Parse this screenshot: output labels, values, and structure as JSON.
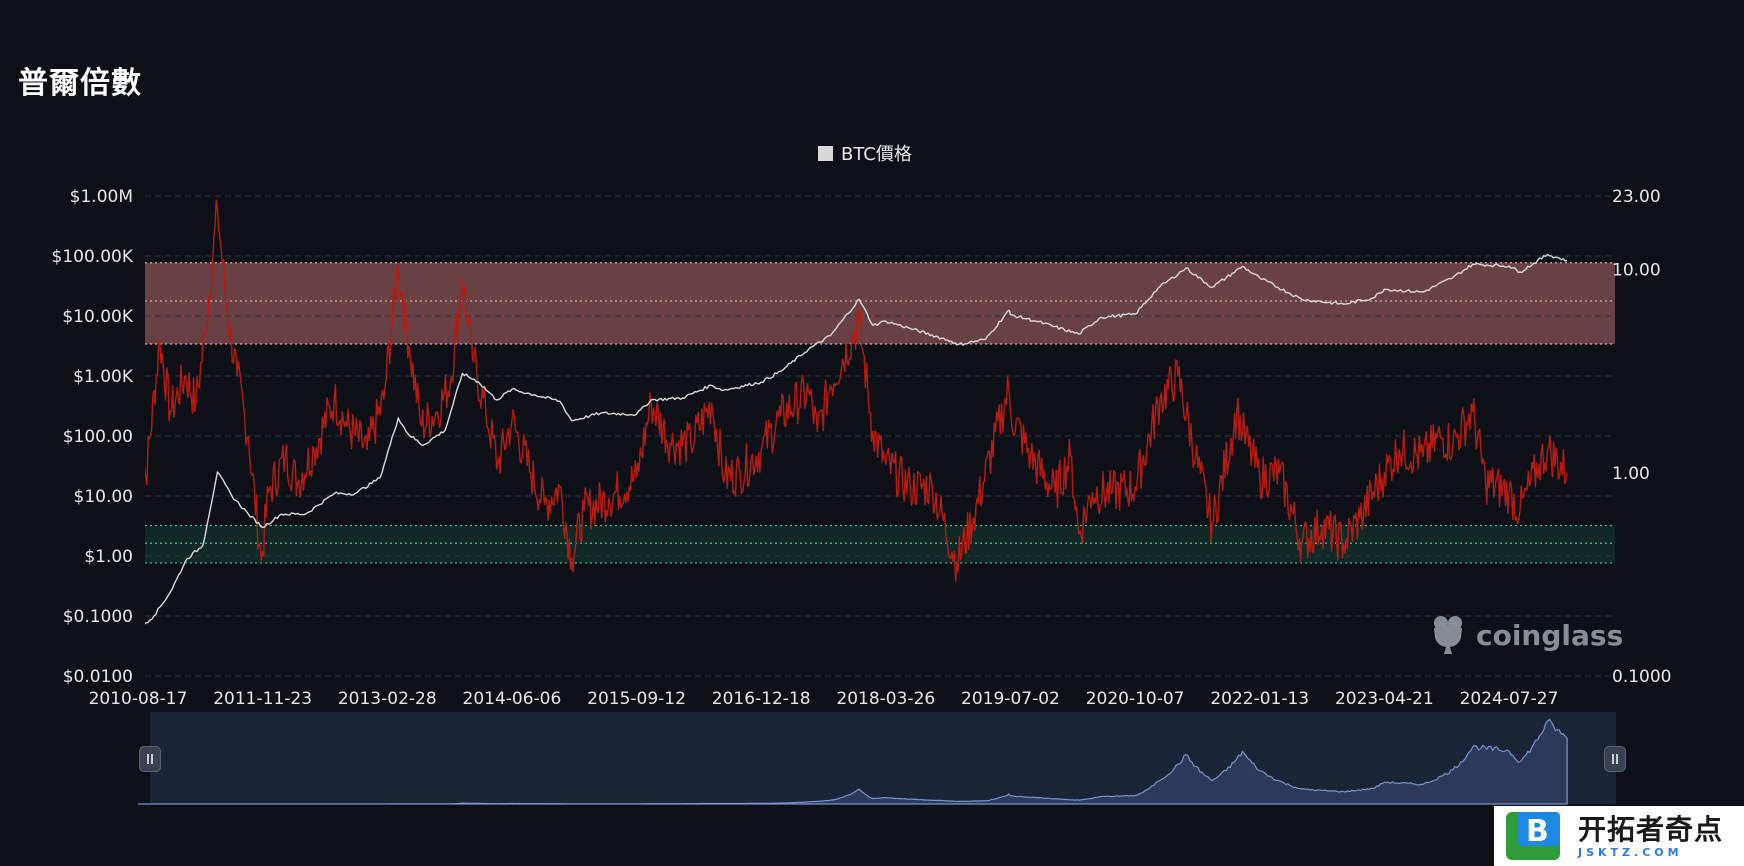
{
  "page": {
    "title": "普爾倍數"
  },
  "legend": {
    "label": "BTC價格",
    "color": "#d9d9d9"
  },
  "watermark": {
    "text": "coinglass",
    "icon": "coinglass-frog-icon"
  },
  "badge": {
    "title": "开拓者奇点",
    "subtitle": "JSKTZ.COM",
    "icon": "b-letter-logo-icon"
  },
  "colors": {
    "background": "#0d1117",
    "price_line": "#d9d9d9",
    "mayer_line": "#b51c12",
    "overbought_band": "#7a4a4c",
    "oversold_band": "#12322c",
    "band_line_red": "#e6b8b8",
    "band_line_green": "#5fc9a9",
    "grid": "#2a3242",
    "navigator_fill": "#2b3a5a",
    "navigator_line": "#7b94c9"
  },
  "chart_data": {
    "type": "line",
    "title": "普爾倍數",
    "x_ticks": [
      "2010-08-17",
      "2011-11-23",
      "2013-02-28",
      "2014-06-06",
      "2015-09-12",
      "2016-12-18",
      "2018-03-26",
      "2019-07-02",
      "2020-10-07",
      "2022-01-13",
      "2023-04-21",
      "2024-07-27"
    ],
    "x_range": [
      "2010-08-17",
      "2025-02-28"
    ],
    "y_left": {
      "scale": "log",
      "range": [
        0.01,
        1000000
      ],
      "ticks": [
        "$0.0100",
        "$0.1000",
        "$1.00",
        "$10.00",
        "$100.00",
        "$1.00K",
        "$10.00K",
        "$100.00K",
        "$1.00M"
      ]
    },
    "y_right": {
      "scale": "log",
      "range": [
        0.1,
        23
      ],
      "ticks": [
        "0.1000",
        "1.00",
        "10.00",
        "23.00"
      ],
      "tick_values": [
        0.1,
        1,
        10,
        23
      ]
    },
    "bands": [
      {
        "name": "overbought",
        "axis": "right",
        "from": 4.3,
        "to": 10.8,
        "line": 7.0,
        "color": "#7a4a4c"
      },
      {
        "name": "oversold",
        "axis": "right",
        "from": 0.36,
        "to": 0.55,
        "line": 0.45,
        "color": "#12322c"
      }
    ],
    "series": [
      {
        "name": "BTC價格",
        "axis": "left",
        "color": "#d9d9d9",
        "points": [
          [
            "2010-08-17",
            0.06
          ],
          [
            "2010-10-15",
            0.1
          ],
          [
            "2010-12-15",
            0.25
          ],
          [
            "2011-02-15",
            0.9
          ],
          [
            "2011-04-15",
            1.5
          ],
          [
            "2011-06-08",
            25
          ],
          [
            "2011-08-01",
            10
          ],
          [
            "2011-10-01",
            5
          ],
          [
            "2011-11-23",
            3
          ],
          [
            "2012-02-01",
            5
          ],
          [
            "2012-05-01",
            5
          ],
          [
            "2012-08-15",
            11
          ],
          [
            "2012-11-01",
            11
          ],
          [
            "2013-02-01",
            20
          ],
          [
            "2013-04-10",
            200
          ],
          [
            "2013-05-15",
            110
          ],
          [
            "2013-07-10",
            70
          ],
          [
            "2013-10-01",
            125
          ],
          [
            "2013-12-04",
            1100
          ],
          [
            "2014-02-01",
            800
          ],
          [
            "2014-04-10",
            400
          ],
          [
            "2014-06-06",
            600
          ],
          [
            "2014-09-01",
            480
          ],
          [
            "2014-12-01",
            380
          ],
          [
            "2015-01-14",
            180
          ],
          [
            "2015-05-01",
            240
          ],
          [
            "2015-09-12",
            230
          ],
          [
            "2015-11-05",
            400
          ],
          [
            "2016-03-01",
            430
          ],
          [
            "2016-06-15",
            700
          ],
          [
            "2016-08-01",
            580
          ],
          [
            "2016-12-18",
            790
          ],
          [
            "2017-03-01",
            1200
          ],
          [
            "2017-06-12",
            2800
          ],
          [
            "2017-09-01",
            4700
          ],
          [
            "2017-12-17",
            19000
          ],
          [
            "2018-02-06",
            7000
          ],
          [
            "2018-03-26",
            8200
          ],
          [
            "2018-06-25",
            6200
          ],
          [
            "2018-11-25",
            3800
          ],
          [
            "2018-12-15",
            3300
          ],
          [
            "2019-04-01",
            4100
          ],
          [
            "2019-06-26",
            12500
          ],
          [
            "2019-07-02",
            10500
          ],
          [
            "2019-10-01",
            8300
          ],
          [
            "2020-03-12",
            5000
          ],
          [
            "2020-06-01",
            9500
          ],
          [
            "2020-10-07",
            10700
          ],
          [
            "2020-12-31",
            29000
          ],
          [
            "2021-04-14",
            63000
          ],
          [
            "2021-07-20",
            30000
          ],
          [
            "2021-11-10",
            67000
          ],
          [
            "2022-01-13",
            43000
          ],
          [
            "2022-06-18",
            19000
          ],
          [
            "2022-11-21",
            15700
          ],
          [
            "2023-03-10",
            20000
          ],
          [
            "2023-04-21",
            28000
          ],
          [
            "2023-09-11",
            25000
          ],
          [
            "2024-01-01",
            44000
          ],
          [
            "2024-03-14",
            73000
          ],
          [
            "2024-07-27",
            68000
          ],
          [
            "2024-09-06",
            54000
          ],
          [
            "2024-12-17",
            106000
          ],
          [
            "2025-02-28",
            84000
          ]
        ]
      },
      {
        "name": "普爾倍數",
        "axis": "right",
        "color": "#b51c12",
        "points": [
          [
            "2010-08-17",
            1.9
          ],
          [
            "2010-09-15",
            0.95
          ],
          [
            "2010-11-06",
            4.5
          ],
          [
            "2010-12-15",
            2.0
          ],
          [
            "2011-02-10",
            3.0
          ],
          [
            "2011-03-20",
            2.2
          ],
          [
            "2011-04-25",
            5.0
          ],
          [
            "2011-06-08",
            20
          ],
          [
            "2011-07-15",
            6.0
          ],
          [
            "2011-08-20",
            3.0
          ],
          [
            "2011-10-01",
            1.5
          ],
          [
            "2011-11-18",
            0.37
          ],
          [
            "2011-12-15",
            0.8
          ],
          [
            "2012-02-15",
            1.2
          ],
          [
            "2012-04-01",
            0.9
          ],
          [
            "2012-06-01",
            1.3
          ],
          [
            "2012-08-15",
            2.3
          ],
          [
            "2012-10-01",
            1.7
          ],
          [
            "2012-12-15",
            1.3
          ],
          [
            "2013-02-15",
            2.3
          ],
          [
            "2013-04-10",
            10.5
          ],
          [
            "2013-05-20",
            4.2
          ],
          [
            "2013-07-05",
            1.7
          ],
          [
            "2013-09-01",
            2.0
          ],
          [
            "2013-10-20",
            2.8
          ],
          [
            "2013-12-04",
            9.0
          ],
          [
            "2014-01-15",
            3.5
          ],
          [
            "2014-03-01",
            2.0
          ],
          [
            "2014-04-15",
            1.1
          ],
          [
            "2014-06-06",
            1.8
          ],
          [
            "2014-08-15",
            1.0
          ],
          [
            "2014-10-05",
            0.7
          ],
          [
            "2014-12-01",
            0.85
          ],
          [
            "2015-01-14",
            0.38
          ],
          [
            "2015-03-01",
            0.65
          ],
          [
            "2015-06-01",
            0.75
          ],
          [
            "2015-09-12",
            0.95
          ],
          [
            "2015-11-05",
            2.2
          ],
          [
            "2016-01-15",
            1.4
          ],
          [
            "2016-04-01",
            1.4
          ],
          [
            "2016-06-17",
            2.2
          ],
          [
            "2016-08-05",
            0.95
          ],
          [
            "2016-10-01",
            1.0
          ],
          [
            "2016-12-18",
            1.3
          ],
          [
            "2017-03-01",
            1.9
          ],
          [
            "2017-06-12",
            2.5
          ],
          [
            "2017-07-15",
            1.6
          ],
          [
            "2017-09-01",
            2.7
          ],
          [
            "2017-12-17",
            5.5
          ],
          [
            "2018-02-06",
            1.6
          ],
          [
            "2018-03-26",
            1.1
          ],
          [
            "2018-06-25",
            0.85
          ],
          [
            "2018-09-15",
            0.85
          ],
          [
            "2018-12-15",
            0.36
          ],
          [
            "2019-02-15",
            0.6
          ],
          [
            "2019-06-26",
            2.6
          ],
          [
            "2019-07-02",
            2.0
          ],
          [
            "2019-09-15",
            1.2
          ],
          [
            "2019-12-15",
            0.8
          ],
          [
            "2020-02-10",
            1.2
          ],
          [
            "2020-03-12",
            0.5
          ],
          [
            "2020-05-01",
            0.8
          ],
          [
            "2020-07-15",
            0.8
          ],
          [
            "2020-10-07",
            0.85
          ],
          [
            "2021-01-08",
            2.3
          ],
          [
            "2021-03-15",
            3.0
          ],
          [
            "2021-05-20",
            1.2
          ],
          [
            "2021-07-20",
            0.55
          ],
          [
            "2021-10-20",
            2.0
          ],
          [
            "2021-11-10",
            1.6
          ],
          [
            "2022-01-13",
            0.95
          ],
          [
            "2022-03-28",
            1.0
          ],
          [
            "2022-06-18",
            0.45
          ],
          [
            "2022-09-01",
            0.55
          ],
          [
            "2022-11-21",
            0.45
          ],
          [
            "2023-01-20",
            0.6
          ],
          [
            "2023-04-21",
            1.0
          ],
          [
            "2023-06-15",
            1.3
          ],
          [
            "2023-09-11",
            1.2
          ],
          [
            "2023-11-15",
            1.5
          ],
          [
            "2024-01-01",
            1.4
          ],
          [
            "2024-03-14",
            2.0
          ],
          [
            "2024-05-01",
            0.9
          ],
          [
            "2024-07-27",
            0.8
          ],
          [
            "2024-09-06",
            0.65
          ],
          [
            "2024-11-15",
            1.1
          ],
          [
            "2024-12-17",
            1.3
          ],
          [
            "2025-02-28",
            1.0
          ]
        ]
      }
    ]
  }
}
